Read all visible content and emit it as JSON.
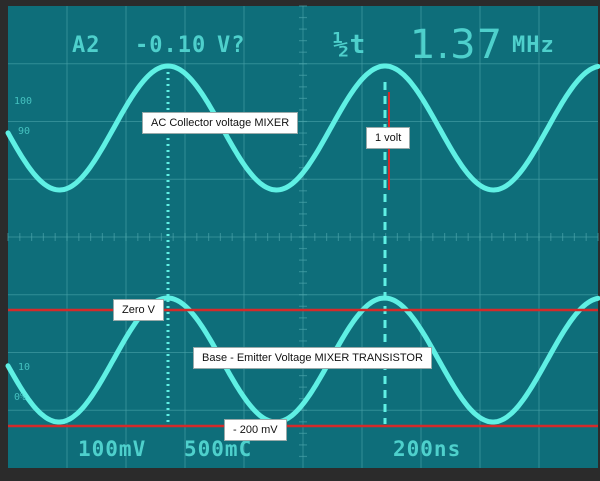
{
  "readouts": {
    "channel": "A2",
    "offset": "-0.10",
    "unit": "V?",
    "trigger_symbol": "½t",
    "frequency": "1.37",
    "frequency_unit": "MHz",
    "ch1_scale": "100mV",
    "ch2_scale": "500mC",
    "time_scale": "200ns"
  },
  "scale_marks": {
    "mark_100": "100",
    "mark_90": "90",
    "mark_10": "10",
    "mark_0": "0%"
  },
  "labels": {
    "collector": "AC Collector voltage MIXER",
    "one_volt": "1 volt",
    "zero_v": "Zero V",
    "base_emitter": "Base - Emitter Voltage MIXER TRANSISTOR",
    "minus_200": "- 200 mV"
  },
  "colors": {
    "screen_bg": "#0e6e7a",
    "trace": "#5ff0e4",
    "marker": "#d42a2a",
    "bezel": "#2b2b2b"
  }
}
